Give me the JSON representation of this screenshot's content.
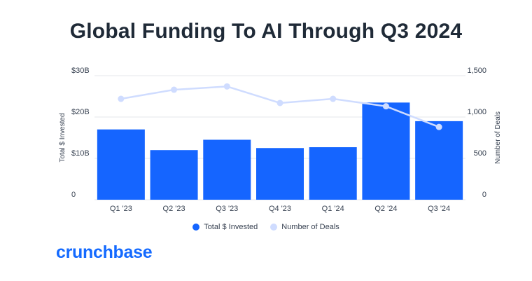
{
  "title": "Global Funding To AI Through Q3 2024",
  "brand": "crunchbase",
  "colors": {
    "bar": "#1565ff",
    "line": "#cfdcff",
    "brand": "#146aff",
    "title": "#1f2a37",
    "grid": "#e5e7eb"
  },
  "chart_data": {
    "type": "bar",
    "categories": [
      "Q1 '23",
      "Q2 '23",
      "Q3 '23",
      "Q4 '23",
      "Q1 '24",
      "Q2 '24",
      "Q3 '24"
    ],
    "series": [
      {
        "name": "Total $ Invested",
        "type": "bar",
        "axis": "left",
        "values": [
          17.0,
          12.0,
          14.5,
          12.5,
          12.7,
          23.5,
          19.0
        ]
      },
      {
        "name": "Number of Deals",
        "type": "line",
        "axis": "right",
        "values": [
          1220,
          1330,
          1370,
          1170,
          1220,
          1130,
          880
        ]
      }
    ],
    "y_left": {
      "label": "Total $ Invested",
      "ylim": [
        0,
        30
      ],
      "ticks": [
        0,
        10,
        20,
        30
      ],
      "tick_labels": [
        "0",
        "$10B",
        "$20B",
        "$30B"
      ]
    },
    "y_right": {
      "label": "Number of Deals",
      "ylim": [
        0,
        1500
      ],
      "ticks": [
        0,
        500,
        1000,
        1500
      ],
      "tick_labels": [
        "0",
        "500",
        "1,000",
        "1,500"
      ]
    },
    "grid": true,
    "legend_position": "bottom"
  }
}
